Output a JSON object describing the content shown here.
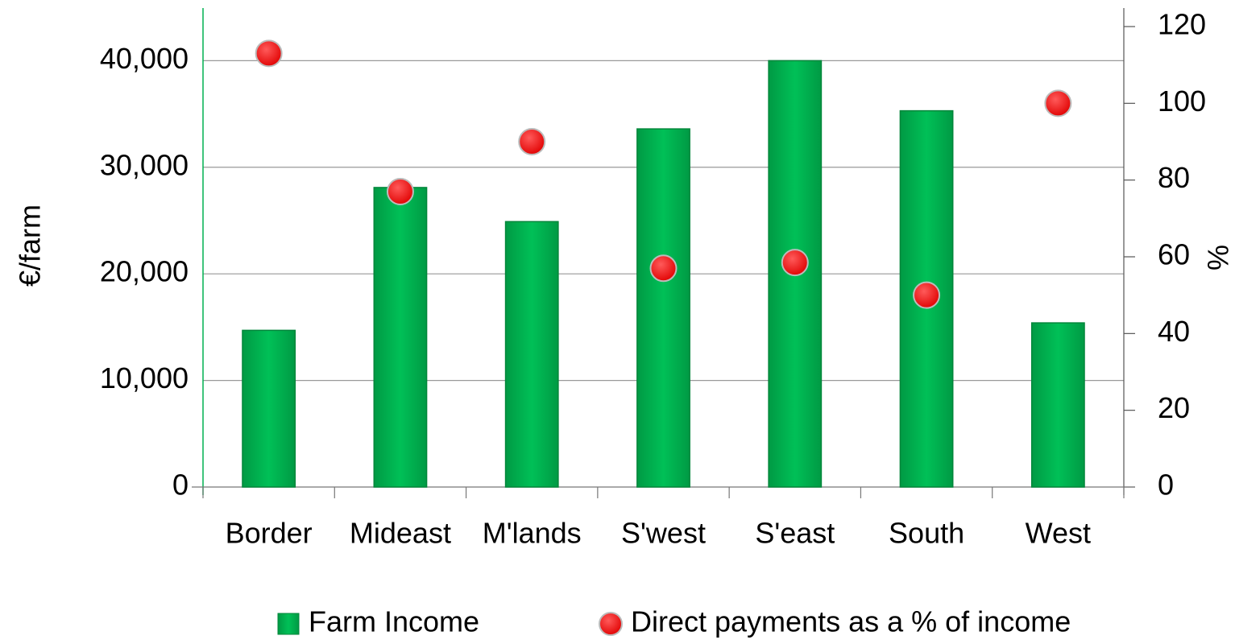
{
  "chart_data": {
    "type": "bar",
    "categories": [
      "Border",
      "Mideast",
      "M'lands",
      "S'west",
      "S'east",
      "South",
      "West"
    ],
    "series": [
      {
        "name": "Farm Income",
        "type": "bar",
        "color": "#00b050",
        "values": [
          14700,
          28100,
          24900,
          33600,
          40000,
          35300,
          15400
        ]
      },
      {
        "name": "Direct payments as a % of income",
        "type": "scatter",
        "axis": "y2",
        "color": "#ff0000",
        "values": [
          113,
          77,
          90,
          57,
          58.5,
          50,
          100
        ]
      }
    ],
    "ylabel": "€/farm",
    "y2label": "%",
    "ylim": [
      0,
      43200
    ],
    "yticks": [
      0,
      {
        "value": 10000,
        "label": "10,000"
      },
      {
        "value": 20000,
        "label": "20,000"
      },
      {
        "value": 30000,
        "label": "30,000"
      },
      {
        "value": 40000,
        "label": "40,000"
      }
    ],
    "y2lim": [
      0,
      120
    ],
    "y2ticks": [
      0,
      20,
      40,
      60,
      80,
      100,
      120
    ],
    "grid": true,
    "legend": "bottom"
  }
}
